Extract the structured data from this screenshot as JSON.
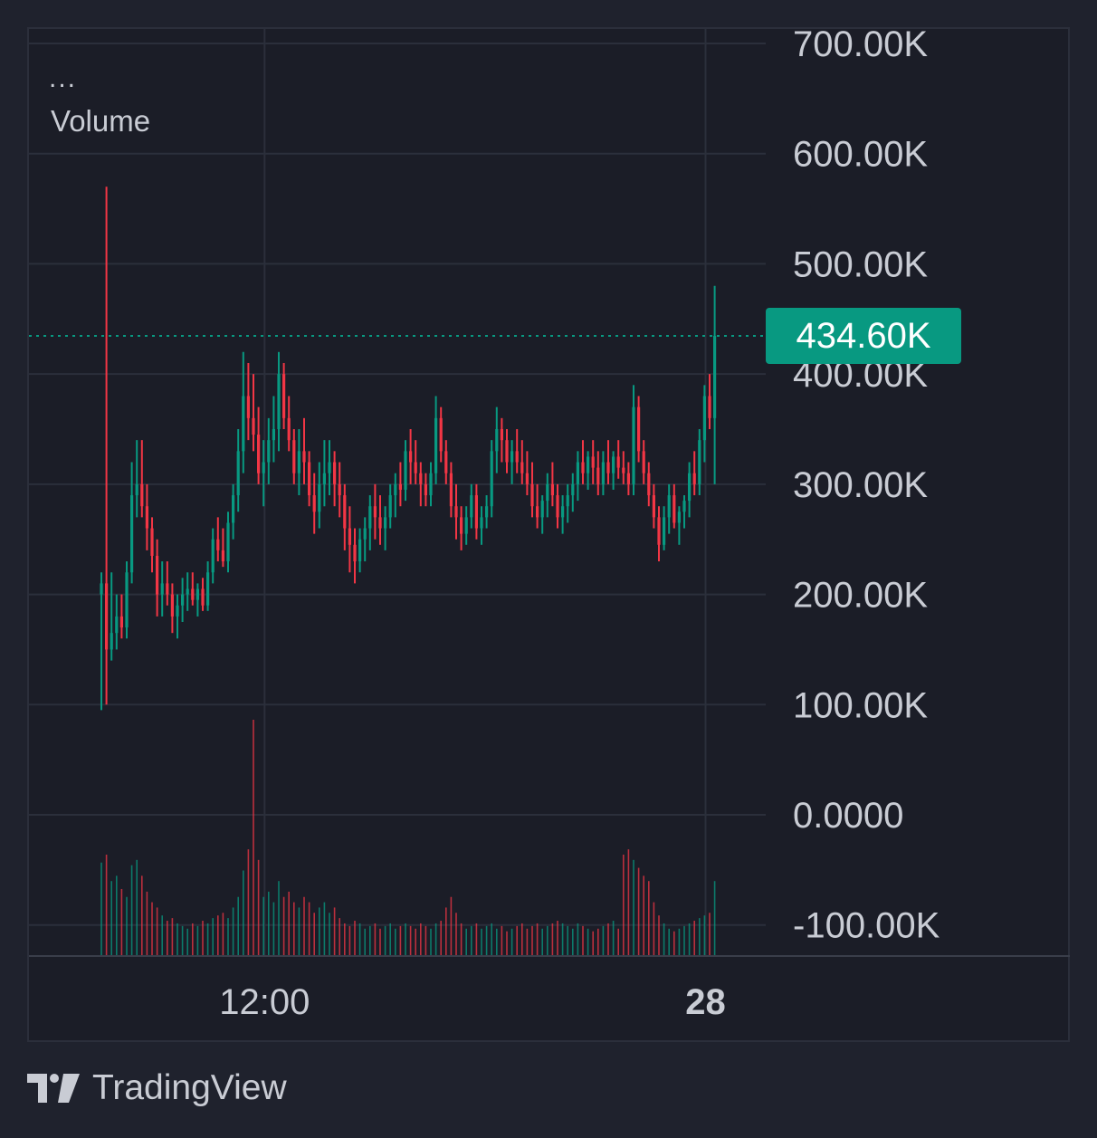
{
  "legend": {
    "dots": "...",
    "title": "Volume"
  },
  "price_badge": {
    "label": "434.60K",
    "color": "#089981"
  },
  "branding": {
    "name": "TradingView"
  },
  "colors": {
    "up": "#089981",
    "down": "#f23645",
    "grid": "#2b2f3b",
    "axis_text": "#c9ccd4",
    "background": "#1b1d27"
  },
  "chart_data": {
    "type": "candlestick",
    "y_axis": {
      "ticks": [
        700000,
        600000,
        500000,
        400000,
        300000,
        200000,
        100000,
        0,
        -100000
      ],
      "tick_labels": [
        "700.00K",
        "600.00K",
        "500.00K",
        "400.00K",
        "300.00K",
        "200.00K",
        "100.00K",
        "0.0000",
        "-100.00K"
      ],
      "range": [
        -128000,
        717000
      ]
    },
    "x_axis": {
      "ticks": [
        {
          "label": "12:00",
          "bold": false,
          "index": 33
        },
        {
          "label": "28",
          "bold": true,
          "index": 120
        }
      ]
    },
    "last_value": 434600,
    "ohlc": [
      [
        200000,
        220000,
        95000,
        210000
      ],
      [
        210000,
        570000,
        100000,
        150000
      ],
      [
        150000,
        220000,
        140000,
        165000
      ],
      [
        165000,
        200000,
        150000,
        180000
      ],
      [
        180000,
        200000,
        160000,
        170000
      ],
      [
        170000,
        230000,
        160000,
        220000
      ],
      [
        220000,
        320000,
        210000,
        290000
      ],
      [
        290000,
        340000,
        270000,
        300000
      ],
      [
        300000,
        340000,
        270000,
        280000
      ],
      [
        280000,
        300000,
        240000,
        260000
      ],
      [
        260000,
        270000,
        220000,
        235000
      ],
      [
        235000,
        250000,
        180000,
        200000
      ],
      [
        200000,
        230000,
        180000,
        210000
      ],
      [
        210000,
        230000,
        190000,
        200000
      ],
      [
        200000,
        210000,
        165000,
        180000
      ],
      [
        180000,
        200000,
        160000,
        190000
      ],
      [
        190000,
        215000,
        175000,
        200000
      ],
      [
        200000,
        220000,
        185000,
        205000
      ],
      [
        205000,
        220000,
        190000,
        195000
      ],
      [
        195000,
        210000,
        180000,
        205000
      ],
      [
        205000,
        215000,
        185000,
        190000
      ],
      [
        190000,
        230000,
        185000,
        220000
      ],
      [
        220000,
        260000,
        210000,
        250000
      ],
      [
        250000,
        270000,
        230000,
        240000
      ],
      [
        240000,
        260000,
        225000,
        230000
      ],
      [
        230000,
        275000,
        220000,
        265000
      ],
      [
        265000,
        300000,
        250000,
        290000
      ],
      [
        290000,
        350000,
        275000,
        330000
      ],
      [
        330000,
        420000,
        310000,
        380000
      ],
      [
        380000,
        410000,
        340000,
        360000
      ],
      [
        360000,
        400000,
        330000,
        345000
      ],
      [
        345000,
        370000,
        300000,
        310000
      ],
      [
        310000,
        340000,
        280000,
        320000
      ],
      [
        320000,
        360000,
        300000,
        340000
      ],
      [
        340000,
        380000,
        320000,
        350000
      ],
      [
        350000,
        420000,
        330000,
        400000
      ],
      [
        400000,
        410000,
        350000,
        360000
      ],
      [
        360000,
        380000,
        330000,
        340000
      ],
      [
        340000,
        350000,
        300000,
        310000
      ],
      [
        310000,
        350000,
        290000,
        330000
      ],
      [
        330000,
        360000,
        300000,
        320000
      ],
      [
        320000,
        330000,
        280000,
        290000
      ],
      [
        290000,
        310000,
        255000,
        275000
      ],
      [
        275000,
        320000,
        260000,
        300000
      ],
      [
        300000,
        340000,
        280000,
        310000
      ],
      [
        310000,
        340000,
        290000,
        320000
      ],
      [
        320000,
        330000,
        280000,
        300000
      ],
      [
        300000,
        320000,
        270000,
        290000
      ],
      [
        290000,
        300000,
        240000,
        260000
      ],
      [
        260000,
        280000,
        220000,
        245000
      ],
      [
        245000,
        260000,
        210000,
        230000
      ],
      [
        230000,
        260000,
        220000,
        250000
      ],
      [
        250000,
        270000,
        230000,
        260000
      ],
      [
        260000,
        290000,
        240000,
        280000
      ],
      [
        280000,
        300000,
        250000,
        270000
      ],
      [
        270000,
        290000,
        245000,
        260000
      ],
      [
        260000,
        280000,
        240000,
        270000
      ],
      [
        270000,
        300000,
        260000,
        290000
      ],
      [
        290000,
        310000,
        270000,
        300000
      ],
      [
        300000,
        320000,
        280000,
        295000
      ],
      [
        295000,
        340000,
        285000,
        330000
      ],
      [
        330000,
        350000,
        300000,
        320000
      ],
      [
        320000,
        340000,
        300000,
        310000
      ],
      [
        310000,
        320000,
        280000,
        300000
      ],
      [
        300000,
        310000,
        280000,
        290000
      ],
      [
        290000,
        320000,
        280000,
        310000
      ],
      [
        310000,
        380000,
        300000,
        360000
      ],
      [
        360000,
        370000,
        320000,
        330000
      ],
      [
        330000,
        340000,
        300000,
        310000
      ],
      [
        310000,
        320000,
        270000,
        280000
      ],
      [
        280000,
        300000,
        250000,
        270000
      ],
      [
        270000,
        280000,
        240000,
        255000
      ],
      [
        255000,
        280000,
        245000,
        270000
      ],
      [
        270000,
        300000,
        260000,
        290000
      ],
      [
        290000,
        300000,
        250000,
        260000
      ],
      [
        260000,
        280000,
        245000,
        270000
      ],
      [
        270000,
        290000,
        260000,
        280000
      ],
      [
        280000,
        340000,
        270000,
        330000
      ],
      [
        330000,
        370000,
        310000,
        350000
      ],
      [
        350000,
        360000,
        320000,
        340000
      ],
      [
        340000,
        350000,
        310000,
        320000
      ],
      [
        320000,
        340000,
        300000,
        330000
      ],
      [
        330000,
        350000,
        310000,
        320000
      ],
      [
        320000,
        340000,
        300000,
        310000
      ],
      [
        310000,
        330000,
        290000,
        300000
      ],
      [
        300000,
        320000,
        270000,
        280000
      ],
      [
        280000,
        300000,
        260000,
        270000
      ],
      [
        270000,
        290000,
        255000,
        285000
      ],
      [
        285000,
        310000,
        270000,
        300000
      ],
      [
        300000,
        320000,
        280000,
        290000
      ],
      [
        290000,
        300000,
        260000,
        270000
      ],
      [
        270000,
        290000,
        255000,
        280000
      ],
      [
        280000,
        300000,
        265000,
        290000
      ],
      [
        290000,
        310000,
        275000,
        300000
      ],
      [
        300000,
        330000,
        285000,
        320000
      ],
      [
        320000,
        340000,
        300000,
        310000
      ],
      [
        310000,
        330000,
        295000,
        325000
      ],
      [
        325000,
        340000,
        300000,
        315000
      ],
      [
        315000,
        330000,
        290000,
        300000
      ],
      [
        300000,
        330000,
        290000,
        320000
      ],
      [
        320000,
        340000,
        300000,
        310000
      ],
      [
        310000,
        330000,
        295000,
        325000
      ],
      [
        325000,
        340000,
        305000,
        315000
      ],
      [
        315000,
        330000,
        300000,
        310000
      ],
      [
        310000,
        320000,
        290000,
        300000
      ],
      [
        300000,
        390000,
        290000,
        370000
      ],
      [
        370000,
        380000,
        320000,
        330000
      ],
      [
        330000,
        340000,
        300000,
        310000
      ],
      [
        310000,
        320000,
        280000,
        290000
      ],
      [
        290000,
        300000,
        260000,
        270000
      ],
      [
        270000,
        280000,
        230000,
        245000
      ],
      [
        245000,
        280000,
        240000,
        270000
      ],
      [
        270000,
        300000,
        255000,
        290000
      ],
      [
        290000,
        300000,
        260000,
        265000
      ],
      [
        265000,
        280000,
        245000,
        275000
      ],
      [
        275000,
        290000,
        260000,
        285000
      ],
      [
        285000,
        320000,
        270000,
        310000
      ],
      [
        310000,
        330000,
        290000,
        300000
      ],
      [
        300000,
        350000,
        290000,
        340000
      ],
      [
        340000,
        390000,
        320000,
        380000
      ],
      [
        380000,
        400000,
        350000,
        360000
      ],
      [
        360000,
        480000,
        300000,
        434600
      ]
    ],
    "volume_scale": 10,
    "volume": [
      35000,
      38000,
      28000,
      30000,
      25000,
      22000,
      34000,
      36000,
      30000,
      24000,
      20000,
      18000,
      15000,
      13000,
      14000,
      12000,
      11000,
      10000,
      12000,
      11000,
      13000,
      12000,
      14000,
      15000,
      16000,
      14000,
      18000,
      22000,
      32000,
      40000,
      100000,
      36000,
      22000,
      24000,
      20000,
      28000,
      22000,
      24000,
      20000,
      18000,
      22000,
      20000,
      16000,
      18000,
      20000,
      16000,
      18000,
      14000,
      12000,
      11000,
      13000,
      12000,
      10000,
      11000,
      12000,
      10000,
      11000,
      12000,
      10000,
      11000,
      12000,
      11000,
      10000,
      12000,
      11000,
      10000,
      12000,
      13000,
      18000,
      22000,
      16000,
      12000,
      10000,
      11000,
      12000,
      10000,
      11000,
      12000,
      10000,
      11000,
      9000,
      10000,
      11000,
      12000,
      10000,
      11000,
      12000,
      10000,
      11000,
      12000,
      13000,
      12000,
      11000,
      10000,
      12000,
      11000,
      10000,
      9000,
      10000,
      11000,
      12000,
      13000,
      10000,
      38000,
      40000,
      36000,
      33000,
      30000,
      28000,
      20000,
      15000,
      12000,
      10000,
      9000,
      10000,
      11000,
      12000,
      13000,
      14000,
      15000,
      16000,
      28000
    ]
  }
}
